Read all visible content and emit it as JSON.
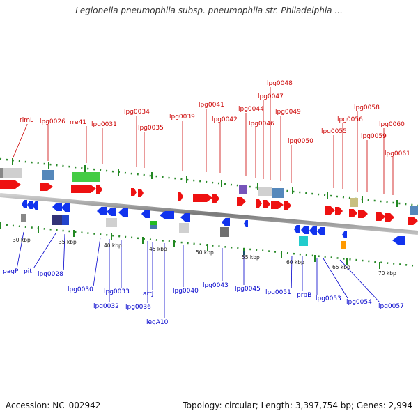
{
  "header": {
    "title": "Legionella pneumophila subsp. pneumophila str. Philadelphia ..."
  },
  "footer": {
    "accession": "Accession: NC_002942",
    "topology": "Topology: circular; Length: 3,397,754 bp; Genes: 2,994"
  },
  "upper_labels": [
    "rlmL",
    "lpg0026",
    "rre41",
    "lpg0031",
    "lpg0034",
    "lpg0035",
    "lpg0039",
    "lpg0041",
    "lpg0042",
    "lpg0044",
    "lpg0046",
    "lpg0047",
    "lpg0048",
    "lpg0049",
    "lpg0050",
    "lpg0055",
    "lpg0056",
    "lpg0058",
    "lpg0059",
    "lpg0060",
    "lpg0061"
  ],
  "lower_labels": [
    "pagP",
    "pit",
    "lpg0028",
    "lpg0030",
    "lpg0032",
    "lpg0033",
    "lpg0036",
    "artJ",
    "legA10",
    "lpg0040",
    "lpg0043",
    "lpg0045",
    "lpg0051",
    "prpB",
    "lpg0053",
    "lpg0054",
    "lpg0057"
  ],
  "ticks": [
    "30 kbp",
    "35 kbp",
    "40 kbp",
    "45 kbp",
    "50 kbp",
    "55 kbp",
    "60 kbp",
    "65 kbp",
    "70 kbp"
  ],
  "colors": {
    "forward_gene": "#ee1111",
    "reverse_gene": "#1133ee",
    "upper_label": "#cc0000",
    "lower_label": "#0000cc",
    "scale": "#228822",
    "backbone": "#888888"
  }
}
